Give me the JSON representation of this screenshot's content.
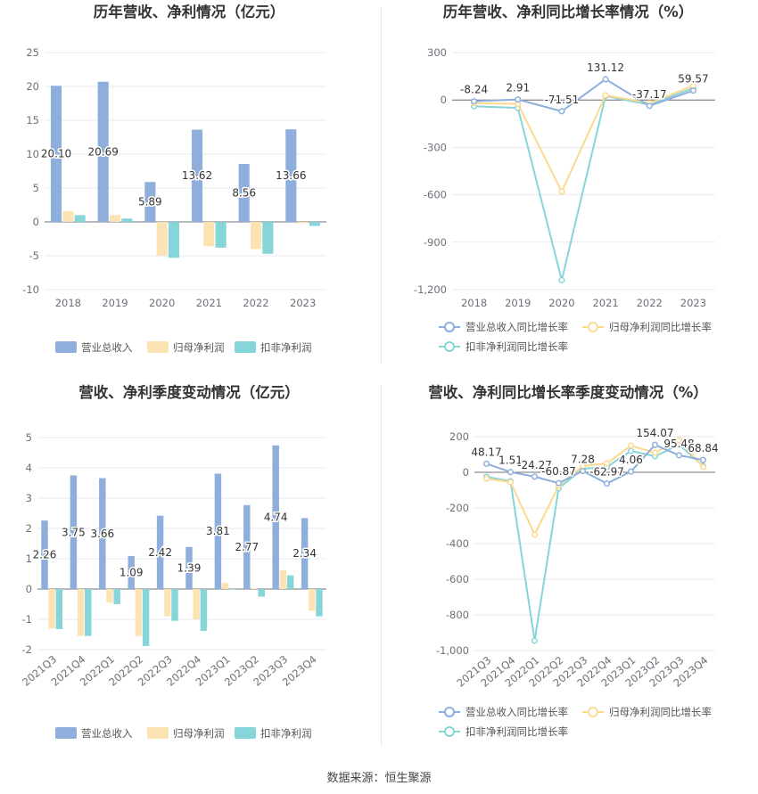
{
  "source_text": "数据来源：恒生聚源",
  "colors": {
    "revenue": "#8eaedb",
    "net_profit": "#fce3b3",
    "deducted_profit": "#86d5d9",
    "grid": "#e8eaf0",
    "axis": "#6e7079"
  },
  "chart_data": [
    {
      "type": "bar",
      "title": "历年营收、净利情况（亿元）",
      "categories": [
        "2018",
        "2019",
        "2020",
        "2021",
        "2022",
        "2023"
      ],
      "ylim": [
        -10,
        25
      ],
      "yticks": [
        "25",
        "20",
        "15",
        "10",
        "5",
        "0",
        "-5",
        "-10"
      ],
      "grid": true,
      "legend_position": "bottom",
      "series": [
        {
          "name": "营业总收入",
          "values": [
            20.1,
            20.69,
            5.89,
            13.62,
            8.56,
            13.66
          ],
          "labels": [
            "20.10",
            "20.69",
            "5.89",
            "13.62",
            "8.56",
            "13.66"
          ]
        },
        {
          "name": "归母净利润",
          "values": [
            1.6,
            1.0,
            -5.0,
            -3.6,
            -4.0,
            -0.2
          ]
        },
        {
          "name": "扣非净利润",
          "values": [
            1.0,
            0.5,
            -5.3,
            -3.8,
            -4.7,
            -0.6
          ]
        }
      ]
    },
    {
      "type": "line",
      "title": "历年营收、净利同比增长率情况（%）",
      "categories": [
        "2018",
        "2019",
        "2020",
        "2021",
        "2022",
        "2023"
      ],
      "ylim": [
        -1200,
        300
      ],
      "yticks": [
        "300",
        "0",
        "-300",
        "-600",
        "-900",
        "-1,200"
      ],
      "grid": true,
      "legend_position": "bottom",
      "series": [
        {
          "name": "营业总收入同比增长率",
          "values": [
            -8.24,
            2.91,
            -71.51,
            131.12,
            -37.17,
            59.57
          ],
          "labels": [
            "-8.24",
            "2.91",
            "-71.51",
            "131.12",
            "-37.17",
            "59.57"
          ]
        },
        {
          "name": "归母净利润同比增长率",
          "values": [
            -20,
            -25,
            -580,
            30,
            -20,
            90
          ]
        },
        {
          "name": "扣非净利润同比增长率",
          "values": [
            -40,
            -50,
            -1140,
            25,
            -30,
            75
          ]
        }
      ]
    },
    {
      "type": "bar",
      "title": "营收、净利季度变动情况（亿元）",
      "categories": [
        "2021Q3",
        "2021Q4",
        "2022Q1",
        "2022Q2",
        "2022Q3",
        "2022Q4",
        "2023Q1",
        "2023Q2",
        "2023Q3",
        "2023Q4"
      ],
      "ylim": [
        -2,
        5
      ],
      "yticks": [
        "5",
        "4",
        "3",
        "2",
        "1",
        "0",
        "-1",
        "-2"
      ],
      "grid": true,
      "legend_position": "bottom",
      "series": [
        {
          "name": "营业总收入",
          "values": [
            2.26,
            3.75,
            3.66,
            1.09,
            2.42,
            1.39,
            3.81,
            2.77,
            4.74,
            2.34
          ],
          "labels": [
            "2.26",
            "3.75",
            "3.66",
            "1.09",
            "2.42",
            "1.39",
            "3.81",
            "2.77",
            "4.74",
            "2.34"
          ]
        },
        {
          "name": "归母净利润",
          "values": [
            -1.3,
            -1.55,
            -0.45,
            -1.55,
            -0.9,
            -1.0,
            0.2,
            0.02,
            0.62,
            -0.72
          ]
        },
        {
          "name": "扣非净利润",
          "values": [
            -1.32,
            -1.55,
            -0.5,
            -1.88,
            -1.05,
            -1.38,
            -0.02,
            -0.25,
            0.45,
            -0.9
          ]
        }
      ]
    },
    {
      "type": "line",
      "title": "营收、净利同比增长率季度变动情况（%）",
      "categories": [
        "2021Q3",
        "2021Q4",
        "2022Q1",
        "2022Q2",
        "2022Q3",
        "2022Q4",
        "2023Q1",
        "2023Q2",
        "2023Q3",
        "2023Q4"
      ],
      "ylim": [
        -1000,
        200
      ],
      "yticks": [
        "200",
        "0",
        "-200",
        "-400",
        "-600",
        "-800",
        "-1,000"
      ],
      "grid": true,
      "legend_position": "bottom",
      "series": [
        {
          "name": "营业总收入同比增长率",
          "values": [
            48.17,
            1.51,
            -24.27,
            -60.87,
            7.28,
            -62.97,
            4.06,
            154.07,
            95.48,
            68.84
          ],
          "labels": [
            "48.17",
            "1.51",
            "-24.27",
            "-60.87",
            "7.28",
            "-62.97",
            "4.06",
            "154.07",
            "95.48",
            "68.84"
          ]
        },
        {
          "name": "归母净利润同比增长率",
          "values": [
            -35,
            -55,
            -350,
            -75,
            35,
            50,
            150,
            110,
            180,
            30
          ]
        },
        {
          "name": "扣非净利润同比增长率",
          "values": [
            -25,
            -50,
            -945,
            -90,
            20,
            30,
            120,
            90,
            155,
            35
          ]
        }
      ]
    }
  ]
}
